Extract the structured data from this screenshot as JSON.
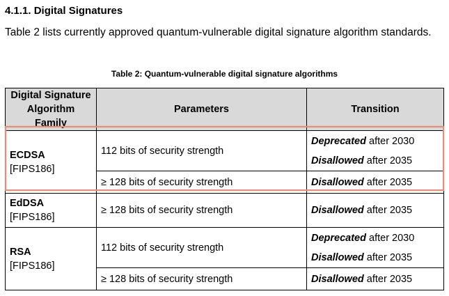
{
  "section": {
    "heading": "4.1.1. Digital Signatures",
    "intro": "Table 2 lists currently approved quantum-vulnerable digital signature algorithm standards."
  },
  "table": {
    "caption": "Table 2: Quantum-vulnerable digital signature algorithms",
    "headers": {
      "family": "Digital Signature Algorithm Family",
      "parameters": "Parameters",
      "transition": "Transition"
    },
    "rows": [
      {
        "family": "ECDSA",
        "ref": "[FIPS186]",
        "entries": [
          {
            "parameters": "112 bits of security strength",
            "transitions": [
              {
                "status": "Deprecated",
                "text": " after 2030"
              },
              {
                "status": "Disallowed",
                "text": " after 2035"
              }
            ]
          },
          {
            "parameters": "≥ 128 bits of security strength",
            "transitions": [
              {
                "status": "Disallowed",
                "text": " after 2035"
              }
            ]
          }
        ]
      },
      {
        "family": "EdDSA",
        "ref": "[FIPS186]",
        "entries": [
          {
            "parameters": "≥ 128 bits of security strength",
            "transitions": [
              {
                "status": "Disallowed",
                "text": " after 2035"
              }
            ]
          }
        ]
      },
      {
        "family": "RSA",
        "ref": "[FIPS186]",
        "entries": [
          {
            "parameters": "112 bits of security strength",
            "transitions": [
              {
                "status": "Deprecated",
                "text": " after 2030"
              },
              {
                "status": "Disallowed",
                "text": " after 2035"
              }
            ]
          },
          {
            "parameters": "≥ 128 bits of security strength",
            "transitions": [
              {
                "status": "Disallowed",
                "text": " after 2035"
              }
            ]
          }
        ]
      }
    ]
  },
  "highlight": {
    "color": "#e0907a"
  }
}
